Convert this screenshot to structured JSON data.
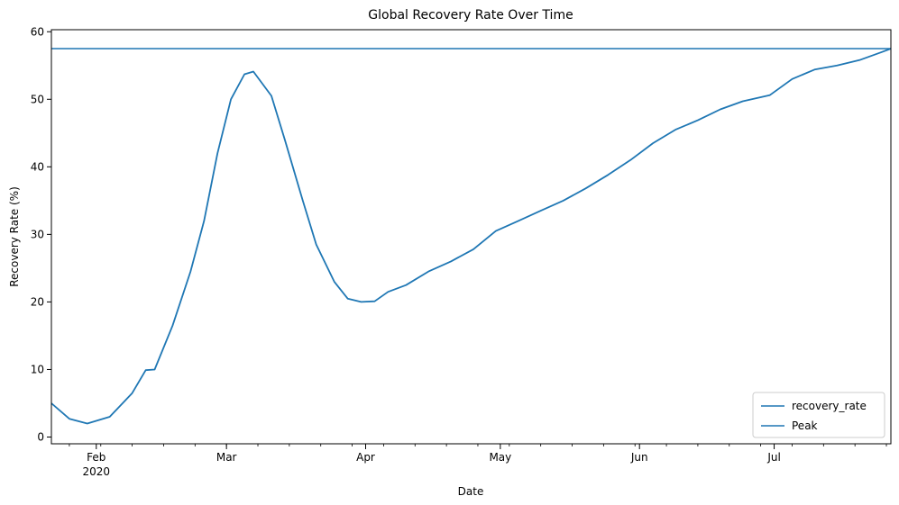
{
  "chart_data": {
    "type": "line",
    "title": "Global Recovery Rate Over Time",
    "xlabel": "Date",
    "ylabel": "Recovery Rate (%)",
    "xlim": [
      "2020-01-22",
      "2020-07-27"
    ],
    "ylim": [
      -1,
      60.3
    ],
    "y_ticks": [
      0,
      10,
      20,
      30,
      40,
      50,
      60
    ],
    "x_major_ticks": [
      {
        "date": "2020-02-01",
        "label": "Feb",
        "sublabel": "2020"
      },
      {
        "date": "2020-03-01",
        "label": "Mar",
        "sublabel": ""
      },
      {
        "date": "2020-04-01",
        "label": "Apr",
        "sublabel": ""
      },
      {
        "date": "2020-05-01",
        "label": "May",
        "sublabel": ""
      },
      {
        "date": "2020-06-01",
        "label": "Jun",
        "sublabel": ""
      },
      {
        "date": "2020-07-01",
        "label": "Jul",
        "sublabel": ""
      }
    ],
    "grid": false,
    "legend_position": "lower-right",
    "color": "#1f77b4",
    "series": [
      {
        "name": "recovery_rate",
        "x": [
          "2020-01-22",
          "2020-01-26",
          "2020-01-30",
          "2020-02-04",
          "2020-02-09",
          "2020-02-12",
          "2020-02-14",
          "2020-02-18",
          "2020-02-22",
          "2020-02-25",
          "2020-02-28",
          "2020-03-02",
          "2020-03-05",
          "2020-03-07",
          "2020-03-11",
          "2020-03-14",
          "2020-03-18",
          "2020-03-21",
          "2020-03-25",
          "2020-03-28",
          "2020-03-31",
          "2020-04-03",
          "2020-04-06",
          "2020-04-10",
          "2020-04-15",
          "2020-04-20",
          "2020-04-25",
          "2020-04-30",
          "2020-05-05",
          "2020-05-10",
          "2020-05-15",
          "2020-05-20",
          "2020-05-25",
          "2020-05-30",
          "2020-06-04",
          "2020-06-09",
          "2020-06-14",
          "2020-06-19",
          "2020-06-24",
          "2020-06-30",
          "2020-07-05",
          "2020-07-10",
          "2020-07-15",
          "2020-07-20",
          "2020-07-25",
          "2020-07-27"
        ],
        "y": [
          5.0,
          2.7,
          2.0,
          3.0,
          6.5,
          9.9,
          10.0,
          16.5,
          24.5,
          32.0,
          42.0,
          50.0,
          53.7,
          54.1,
          50.5,
          44.0,
          35.0,
          28.5,
          23.0,
          20.5,
          20.0,
          20.1,
          21.5,
          22.5,
          24.5,
          26.0,
          27.8,
          30.5,
          32.0,
          33.5,
          35.0,
          36.8,
          38.8,
          41.0,
          43.5,
          45.5,
          46.9,
          48.5,
          49.7,
          50.6,
          53.0,
          54.4,
          55.0,
          55.8,
          57.0,
          57.5
        ]
      },
      {
        "name": "Peak",
        "y_constant": 57.5
      }
    ]
  }
}
